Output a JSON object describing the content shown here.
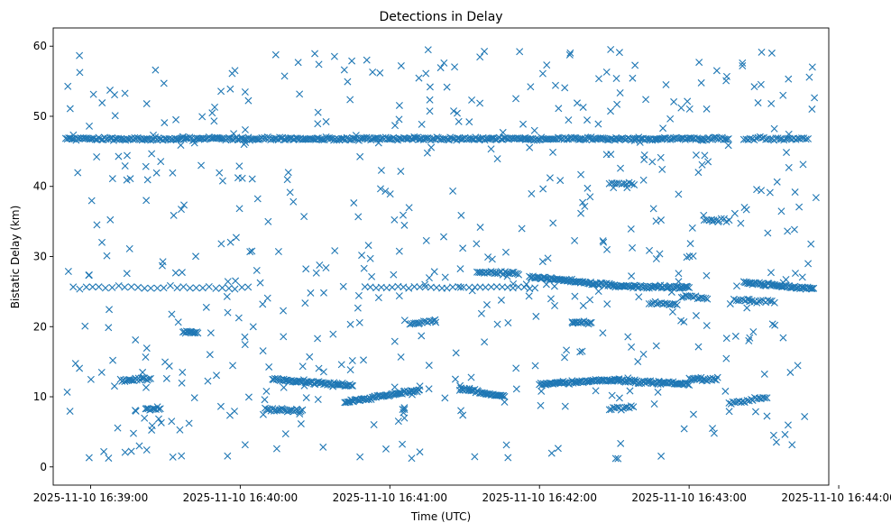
{
  "chart_data": {
    "type": "scatter",
    "title": "Detections in Delay",
    "xlabel": "Time (UTC)",
    "ylabel": "Bistatic Delay (km)",
    "x_unit": "seconds after 2025-11-10 16:38:00 UTC",
    "xlim": [
      45,
      356
    ],
    "ylim": [
      -2.6,
      62.6
    ],
    "xticks": [
      {
        "value": 60,
        "label": "2025-11-10 16:39:00"
      },
      {
        "value": 120,
        "label": "2025-11-10 16:40:00"
      },
      {
        "value": 180,
        "label": "2025-11-10 16:41:00"
      },
      {
        "value": 240,
        "label": "2025-11-10 16:42:00"
      },
      {
        "value": 300,
        "label": "2025-11-10 16:43:00"
      },
      {
        "value": 360,
        "label": "2025-11-10 16:44:00"
      }
    ],
    "yticks": [
      0,
      10,
      20,
      30,
      40,
      50,
      60
    ],
    "grid": false,
    "marker": "x",
    "color": "#1f77b4",
    "x_range": [
      50,
      351
    ],
    "tracks": [
      {
        "x0": 50,
        "x1": 316,
        "y0": 46.8,
        "y1": 46.8,
        "step": 0.6
      },
      {
        "x0": 322,
        "x1": 348,
        "y0": 46.8,
        "y1": 46.8,
        "step": 0.8
      },
      {
        "x0": 53,
        "x1": 124,
        "y0": 25.6,
        "y1": 25.6,
        "step": 2.6
      },
      {
        "x0": 170,
        "x1": 240,
        "y0": 25.6,
        "y1": 25.6,
        "step": 2.2
      },
      {
        "x0": 215,
        "x1": 232,
        "y0": 27.8,
        "y1": 27.6,
        "step": 0.7
      },
      {
        "x0": 236,
        "x1": 270,
        "y0": 27.1,
        "y1": 25.9,
        "step": 0.5
      },
      {
        "x0": 270,
        "x1": 300,
        "y0": 25.8,
        "y1": 25.6,
        "step": 0.5
      },
      {
        "x0": 322,
        "x1": 350,
        "y0": 26.3,
        "y1": 25.4,
        "step": 0.5
      },
      {
        "x0": 284,
        "x1": 296,
        "y0": 23.4,
        "y1": 23.2,
        "step": 0.8
      },
      {
        "x0": 297,
        "x1": 308,
        "y0": 24.3,
        "y1": 24.0,
        "step": 0.8
      },
      {
        "x0": 318,
        "x1": 335,
        "y0": 23.8,
        "y1": 23.5,
        "step": 0.9
      },
      {
        "x0": 72,
        "x1": 84,
        "y0": 12.3,
        "y1": 12.6,
        "step": 0.6
      },
      {
        "x0": 82,
        "x1": 88,
        "y0": 8.3,
        "y1": 8.3,
        "step": 0.6
      },
      {
        "x0": 97,
        "x1": 103,
        "y0": 19.2,
        "y1": 19.2,
        "step": 0.5
      },
      {
        "x0": 130,
        "x1": 145,
        "y0": 8.2,
        "y1": 8.0,
        "step": 0.6
      },
      {
        "x0": 133,
        "x1": 165,
        "y0": 12.5,
        "y1": 11.6,
        "step": 0.5
      },
      {
        "x0": 162,
        "x1": 192,
        "y0": 9.2,
        "y1": 11.0,
        "step": 0.5
      },
      {
        "x0": 188,
        "x1": 199,
        "y0": 20.4,
        "y1": 20.8,
        "step": 0.8
      },
      {
        "x0": 208,
        "x1": 226,
        "y0": 11.2,
        "y1": 10.0,
        "step": 0.5
      },
      {
        "x0": 240,
        "x1": 272,
        "y0": 11.8,
        "y1": 12.4,
        "step": 0.5
      },
      {
        "x0": 272,
        "x1": 300,
        "y0": 12.3,
        "y1": 11.8,
        "step": 0.5
      },
      {
        "x0": 300,
        "x1": 312,
        "y0": 12.5,
        "y1": 12.5,
        "step": 0.6
      },
      {
        "x0": 316,
        "x1": 332,
        "y0": 9.0,
        "y1": 10.0,
        "step": 0.8
      },
      {
        "x0": 253,
        "x1": 261,
        "y0": 20.6,
        "y1": 20.6,
        "step": 0.6
      },
      {
        "x0": 268,
        "x1": 278,
        "y0": 8.3,
        "y1": 8.5,
        "step": 0.8
      },
      {
        "x0": 268,
        "x1": 278,
        "y0": 40.5,
        "y1": 40.3,
        "step": 1.0
      },
      {
        "x0": 306,
        "x1": 316,
        "y0": 35.2,
        "y1": 35.2,
        "step": 1.0
      }
    ],
    "scatter_count": 560,
    "seed": 1729
  }
}
